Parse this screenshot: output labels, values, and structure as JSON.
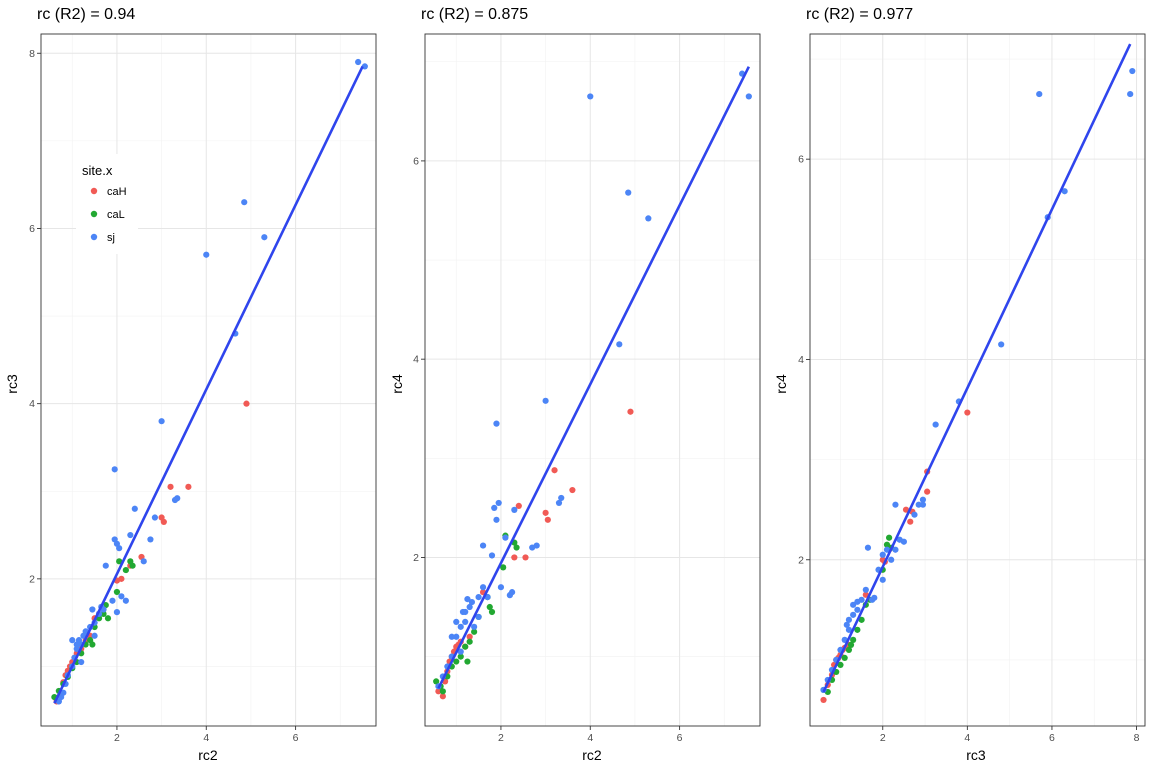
{
  "chart_data": [
    {
      "type": "scatter",
      "title": "rc (R2) =  0.94",
      "xlabel": "rc2",
      "ylabel": "rc3",
      "xlim": [
        0.3,
        7.8
      ],
      "ylim": [
        0.32,
        8.22
      ],
      "xticks": [
        2,
        4,
        6
      ],
      "yticks": [
        2,
        4,
        6,
        8
      ],
      "grid": true,
      "fit_line": {
        "color": "#2f45ed",
        "points": [
          [
            0.6,
            0.58
          ],
          [
            7.5,
            7.85
          ]
        ]
      },
      "legend": {
        "title": "site.x",
        "placement": "top-left",
        "entries": [
          {
            "name": "caH",
            "color": "#f15a55"
          },
          {
            "name": "caL",
            "color": "#22a832"
          },
          {
            "name": "sj",
            "color": "#4c85f6"
          }
        ]
      },
      "series": [
        {
          "name": "caH",
          "color": "#f15a55",
          "points": [
            [
              0.65,
              0.6
            ],
            [
              0.75,
              0.7
            ],
            [
              0.8,
              0.82
            ],
            [
              0.85,
              0.9
            ],
            [
              0.9,
              0.95
            ],
            [
              0.95,
              1.0
            ],
            [
              1.0,
              1.05
            ],
            [
              1.05,
              1.1
            ],
            [
              1.1,
              1.15
            ],
            [
              1.2,
              1.2
            ],
            [
              1.3,
              1.3
            ],
            [
              1.4,
              1.35
            ],
            [
              1.5,
              1.55
            ],
            [
              1.6,
              1.6
            ],
            [
              2.0,
              1.98
            ],
            [
              2.1,
              2.0
            ],
            [
              2.3,
              2.15
            ],
            [
              2.55,
              2.25
            ],
            [
              3.0,
              2.7
            ],
            [
              3.05,
              2.65
            ],
            [
              3.2,
              3.05
            ],
            [
              3.6,
              3.05
            ],
            [
              4.9,
              4.0
            ]
          ]
        },
        {
          "name": "caL",
          "color": "#22a832",
          "points": [
            [
              0.6,
              0.65
            ],
            [
              0.7,
              0.72
            ],
            [
              0.8,
              0.8
            ],
            [
              0.9,
              0.88
            ],
            [
              1.0,
              0.98
            ],
            [
              1.1,
              1.05
            ],
            [
              1.2,
              1.15
            ],
            [
              1.3,
              1.25
            ],
            [
              1.4,
              1.3
            ],
            [
              1.5,
              1.45
            ],
            [
              1.6,
              1.55
            ],
            [
              1.7,
              1.6
            ],
            [
              1.75,
              1.7
            ],
            [
              1.8,
              1.55
            ],
            [
              2.0,
              1.85
            ],
            [
              2.05,
              2.2
            ],
            [
              2.2,
              2.1
            ],
            [
              2.3,
              2.2
            ],
            [
              2.35,
              2.15
            ],
            [
              1.45,
              1.25
            ]
          ]
        },
        {
          "name": "sj",
          "color": "#4c85f6",
          "points": [
            [
              0.7,
              0.6
            ],
            [
              0.75,
              0.65
            ],
            [
              0.8,
              0.7
            ],
            [
              0.85,
              0.8
            ],
            [
              0.9,
              0.9
            ],
            [
              1.0,
              1.0
            ],
            [
              1.05,
              1.1
            ],
            [
              1.1,
              1.2
            ],
            [
              1.15,
              1.3
            ],
            [
              1.2,
              1.25
            ],
            [
              1.25,
              1.35
            ],
            [
              1.3,
              1.4
            ],
            [
              1.4,
              1.45
            ],
            [
              1.5,
              1.5
            ],
            [
              1.6,
              1.6
            ],
            [
              1.65,
              1.68
            ],
            [
              1.7,
              1.65
            ],
            [
              1.75,
              2.15
            ],
            [
              1.9,
              1.75
            ],
            [
              1.95,
              2.45
            ],
            [
              2.0,
              2.4
            ],
            [
              2.05,
              2.35
            ],
            [
              2.1,
              1.8
            ],
            [
              2.2,
              1.75
            ],
            [
              2.3,
              2.5
            ],
            [
              2.4,
              2.8
            ],
            [
              2.6,
              2.2
            ],
            [
              2.75,
              2.45
            ],
            [
              2.85,
              2.7
            ],
            [
              3.3,
              2.9
            ],
            [
              3.35,
              2.92
            ],
            [
              1.95,
              3.25
            ],
            [
              3.0,
              3.8
            ],
            [
              4.0,
              5.7
            ],
            [
              4.65,
              4.8
            ],
            [
              4.85,
              6.3
            ],
            [
              5.3,
              5.9
            ],
            [
              7.4,
              7.9
            ],
            [
              7.55,
              7.85
            ],
            [
              1.0,
              1.3
            ],
            [
              1.1,
              1.25
            ],
            [
              1.5,
              1.35
            ],
            [
              1.2,
              1.05
            ],
            [
              1.45,
              1.65
            ],
            [
              2.0,
              1.62
            ]
          ]
        }
      ]
    },
    {
      "type": "scatter",
      "title": "rc (R2) =  0.875",
      "xlabel": "rc2",
      "ylabel": "rc4",
      "xlim": [
        0.3,
        7.8
      ],
      "ylim": [
        0.3,
        7.28
      ],
      "xticks": [
        2,
        4,
        6
      ],
      "yticks": [
        2,
        4,
        6
      ],
      "grid": true,
      "fit_line": {
        "color": "#2f45ed",
        "points": [
          [
            0.6,
            0.68
          ],
          [
            7.55,
            6.95
          ]
        ]
      },
      "series": [
        {
          "name": "caH",
          "color": "#f15a55",
          "points": [
            [
              0.6,
              0.65
            ],
            [
              0.7,
              0.6
            ],
            [
              0.75,
              0.75
            ],
            [
              0.8,
              0.85
            ],
            [
              0.85,
              0.95
            ],
            [
              0.9,
              1.0
            ],
            [
              0.95,
              1.05
            ],
            [
              1.0,
              1.1
            ],
            [
              1.05,
              1.12
            ],
            [
              1.1,
              1.15
            ],
            [
              1.2,
              1.1
            ],
            [
              1.3,
              1.2
            ],
            [
              1.6,
              1.65
            ],
            [
              2.3,
              2.0
            ],
            [
              2.4,
              2.52
            ],
            [
              2.55,
              2.0
            ],
            [
              3.0,
              2.45
            ],
            [
              3.05,
              2.38
            ],
            [
              3.2,
              2.88
            ],
            [
              3.6,
              2.68
            ],
            [
              4.9,
              3.47
            ]
          ]
        },
        {
          "name": "caL",
          "color": "#22a832",
          "points": [
            [
              0.55,
              0.75
            ],
            [
              0.65,
              0.7
            ],
            [
              0.7,
              0.65
            ],
            [
              0.8,
              0.8
            ],
            [
              0.9,
              0.9
            ],
            [
              1.0,
              0.95
            ],
            [
              1.1,
              1.0
            ],
            [
              1.2,
              1.1
            ],
            [
              1.3,
              1.15
            ],
            [
              1.4,
              1.25
            ],
            [
              1.5,
              1.4
            ],
            [
              1.7,
              1.6
            ],
            [
              1.75,
              1.5
            ],
            [
              1.8,
              1.45
            ],
            [
              2.05,
              1.9
            ],
            [
              2.1,
              2.22
            ],
            [
              2.3,
              2.15
            ],
            [
              2.35,
              2.1
            ],
            [
              1.25,
              0.95
            ]
          ]
        },
        {
          "name": "sj",
          "color": "#4c85f6",
          "points": [
            [
              0.6,
              0.7
            ],
            [
              0.7,
              0.8
            ],
            [
              0.8,
              0.9
            ],
            [
              0.9,
              1.0
            ],
            [
              1.0,
              1.2
            ],
            [
              1.1,
              1.3
            ],
            [
              1.15,
              1.45
            ],
            [
              1.2,
              1.35
            ],
            [
              1.3,
              1.5
            ],
            [
              1.35,
              1.55
            ],
            [
              1.4,
              1.3
            ],
            [
              1.5,
              1.4
            ],
            [
              1.6,
              1.7
            ],
            [
              1.7,
              1.6
            ],
            [
              1.8,
              2.02
            ],
            [
              1.85,
              2.5
            ],
            [
              1.9,
              2.38
            ],
            [
              1.95,
              2.55
            ],
            [
              2.0,
              1.7
            ],
            [
              2.1,
              2.2
            ],
            [
              2.2,
              1.62
            ],
            [
              2.25,
              1.65
            ],
            [
              2.3,
              2.48
            ],
            [
              2.7,
              2.1
            ],
            [
              2.8,
              2.12
            ],
            [
              3.3,
              2.55
            ],
            [
              3.35,
              2.6
            ],
            [
              1.6,
              2.12
            ],
            [
              1.9,
              3.35
            ],
            [
              3.0,
              3.58
            ],
            [
              4.0,
              6.65
            ],
            [
              4.65,
              4.15
            ],
            [
              4.85,
              5.68
            ],
            [
              5.3,
              5.42
            ],
            [
              7.4,
              6.88
            ],
            [
              7.55,
              6.65
            ],
            [
              1.0,
              1.35
            ],
            [
              1.2,
              1.45
            ],
            [
              1.5,
              1.6
            ],
            [
              1.1,
              1.05
            ],
            [
              0.9,
              1.2
            ],
            [
              1.25,
              1.58
            ]
          ]
        }
      ]
    },
    {
      "type": "scatter",
      "title": "rc (R2) =  0.977",
      "xlabel": "rc3",
      "ylabel": "rc4",
      "xlim": [
        0.28,
        8.2
      ],
      "ylim": [
        0.34,
        7.25
      ],
      "xticks": [
        2,
        4,
        6,
        8
      ],
      "yticks": [
        2,
        4,
        6
      ],
      "grid": true,
      "fit_line": {
        "color": "#2f45ed",
        "points": [
          [
            0.6,
            0.68
          ],
          [
            7.85,
            7.15
          ]
        ]
      },
      "series": [
        {
          "name": "caH",
          "color": "#f15a55",
          "points": [
            [
              0.6,
              0.6
            ],
            [
              0.7,
              0.75
            ],
            [
              0.8,
              0.85
            ],
            [
              0.85,
              0.95
            ],
            [
              0.9,
              1.0
            ],
            [
              0.95,
              1.02
            ],
            [
              1.0,
              1.05
            ],
            [
              1.05,
              1.1
            ],
            [
              1.1,
              1.12
            ],
            [
              1.2,
              1.15
            ],
            [
              1.6,
              1.65
            ],
            [
              2.0,
              2.0
            ],
            [
              2.05,
              1.98
            ],
            [
              2.15,
              2.1
            ],
            [
              2.55,
              2.5
            ],
            [
              2.65,
              2.38
            ],
            [
              2.7,
              2.48
            ],
            [
              3.05,
              2.68
            ],
            [
              3.05,
              2.88
            ],
            [
              4.0,
              3.47
            ]
          ]
        },
        {
          "name": "caL",
          "color": "#22a832",
          "points": [
            [
              0.6,
              0.7
            ],
            [
              0.7,
              0.68
            ],
            [
              0.8,
              0.8
            ],
            [
              0.9,
              0.88
            ],
            [
              1.0,
              0.95
            ],
            [
              1.1,
              1.02
            ],
            [
              1.2,
              1.1
            ],
            [
              1.3,
              1.2
            ],
            [
              1.4,
              1.3
            ],
            [
              1.5,
              1.4
            ],
            [
              1.6,
              1.55
            ],
            [
              1.7,
              1.6
            ],
            [
              2.0,
              1.9
            ],
            [
              2.1,
              2.15
            ],
            [
              2.15,
              2.22
            ],
            [
              2.2,
              2.12
            ],
            [
              1.25,
              1.15
            ]
          ]
        },
        {
          "name": "sj",
          "color": "#4c85f6",
          "points": [
            [
              0.6,
              0.7
            ],
            [
              0.7,
              0.8
            ],
            [
              0.8,
              0.9
            ],
            [
              0.9,
              1.0
            ],
            [
              1.0,
              1.1
            ],
            [
              1.1,
              1.2
            ],
            [
              1.2,
              1.3
            ],
            [
              1.3,
              1.45
            ],
            [
              1.4,
              1.5
            ],
            [
              1.5,
              1.6
            ],
            [
              1.6,
              1.7
            ],
            [
              1.65,
              2.12
            ],
            [
              1.75,
              1.6
            ],
            [
              1.8,
              1.62
            ],
            [
              1.9,
              1.9
            ],
            [
              2.0,
              2.05
            ],
            [
              2.1,
              2.1
            ],
            [
              2.2,
              2.0
            ],
            [
              2.3,
              2.1
            ],
            [
              2.4,
              2.2
            ],
            [
              2.5,
              2.18
            ],
            [
              2.75,
              2.45
            ],
            [
              2.85,
              2.55
            ],
            [
              2.95,
              2.6
            ],
            [
              2.95,
              2.55
            ],
            [
              3.25,
              3.35
            ],
            [
              3.8,
              3.58
            ],
            [
              4.8,
              4.15
            ],
            [
              5.7,
              6.65
            ],
            [
              5.9,
              5.42
            ],
            [
              6.3,
              5.68
            ],
            [
              7.85,
              6.65
            ],
            [
              7.9,
              6.88
            ],
            [
              1.3,
              1.55
            ],
            [
              1.4,
              1.58
            ],
            [
              1.2,
              1.4
            ],
            [
              1.15,
              1.35
            ],
            [
              2.3,
              2.55
            ],
            [
              2.0,
              1.8
            ]
          ]
        }
      ]
    }
  ]
}
